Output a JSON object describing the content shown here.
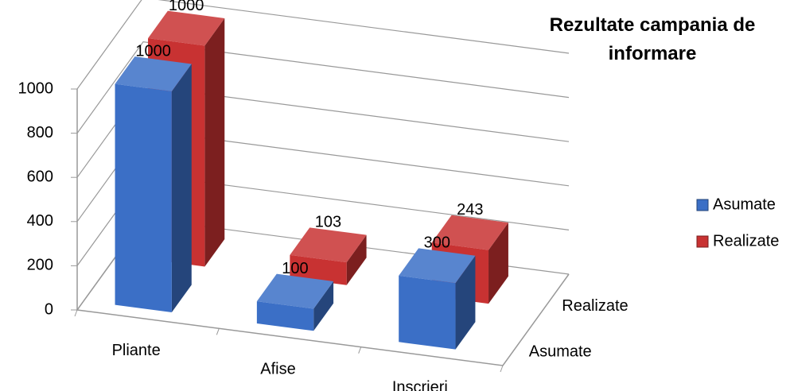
{
  "chart_data": {
    "type": "bar3d",
    "title": "Rezultate campania de informare",
    "categories": [
      "Pliante",
      "Afise",
      "Inscrieri"
    ],
    "series": [
      {
        "name": "Asumate",
        "color": "#3b6fc6",
        "values": [
          1000,
          100,
          300
        ]
      },
      {
        "name": "Realizate",
        "color": "#c83232",
        "values": [
          1000,
          103,
          243
        ]
      }
    ],
    "ylim": [
      0,
      1000
    ],
    "yticks": [
      0,
      200,
      400,
      600,
      800,
      1000
    ],
    "grid": true,
    "legend": "right"
  }
}
